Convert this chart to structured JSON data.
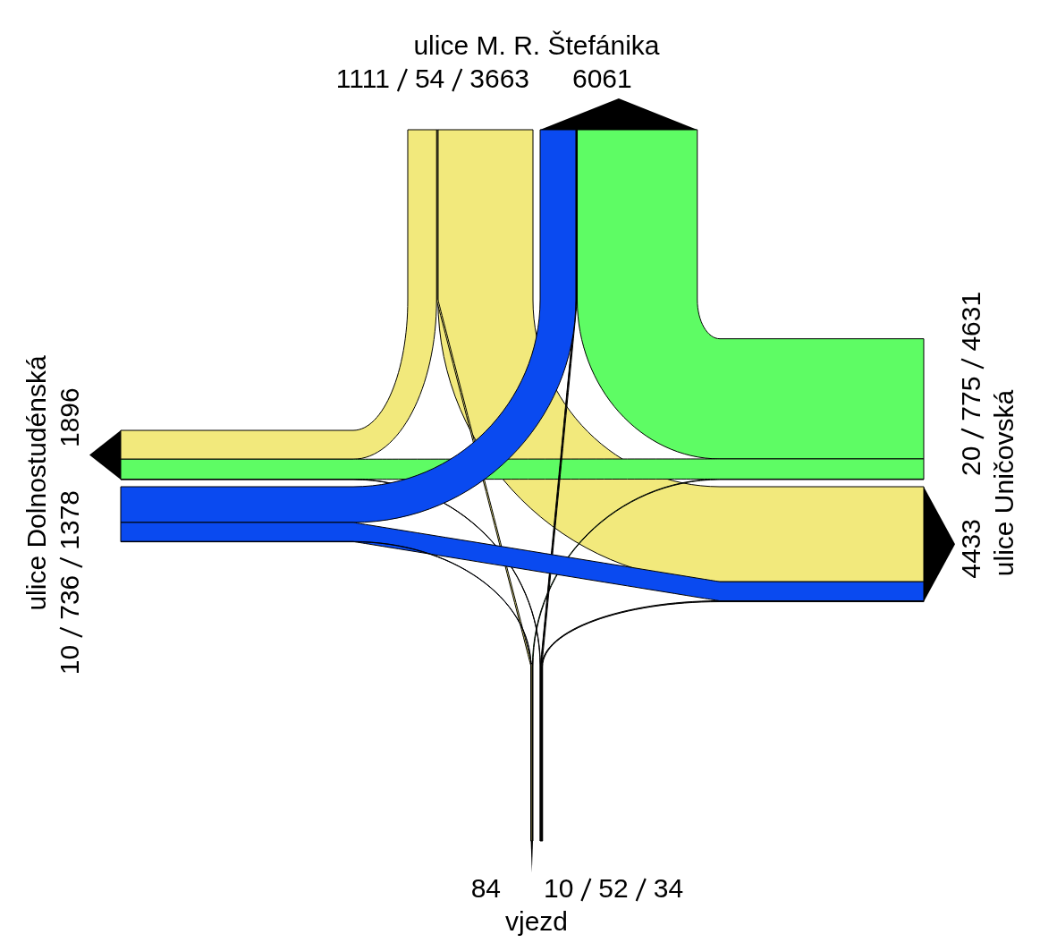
{
  "chart_data": {
    "type": "other",
    "categories": [
      "ulice M. R. Štefánika",
      "ulice Uničovská",
      "vjezd",
      "ulice Dolnostudénská"
    ],
    "colors": [
      "#f2e97c",
      "#5efc64",
      "#000000",
      "#0a4af0"
    ],
    "series": [
      {
        "values": [
          1111,
          20,
          10,
          10
        ]
      },
      {
        "values": [
          54,
          775,
          52,
          736
        ]
      },
      {
        "values": [
          3663,
          4631,
          34,
          1378
        ]
      }
    ],
    "totals": [
      "6061",
      "4433",
      "84",
      "1896"
    ],
    "data_labels": true
  }
}
